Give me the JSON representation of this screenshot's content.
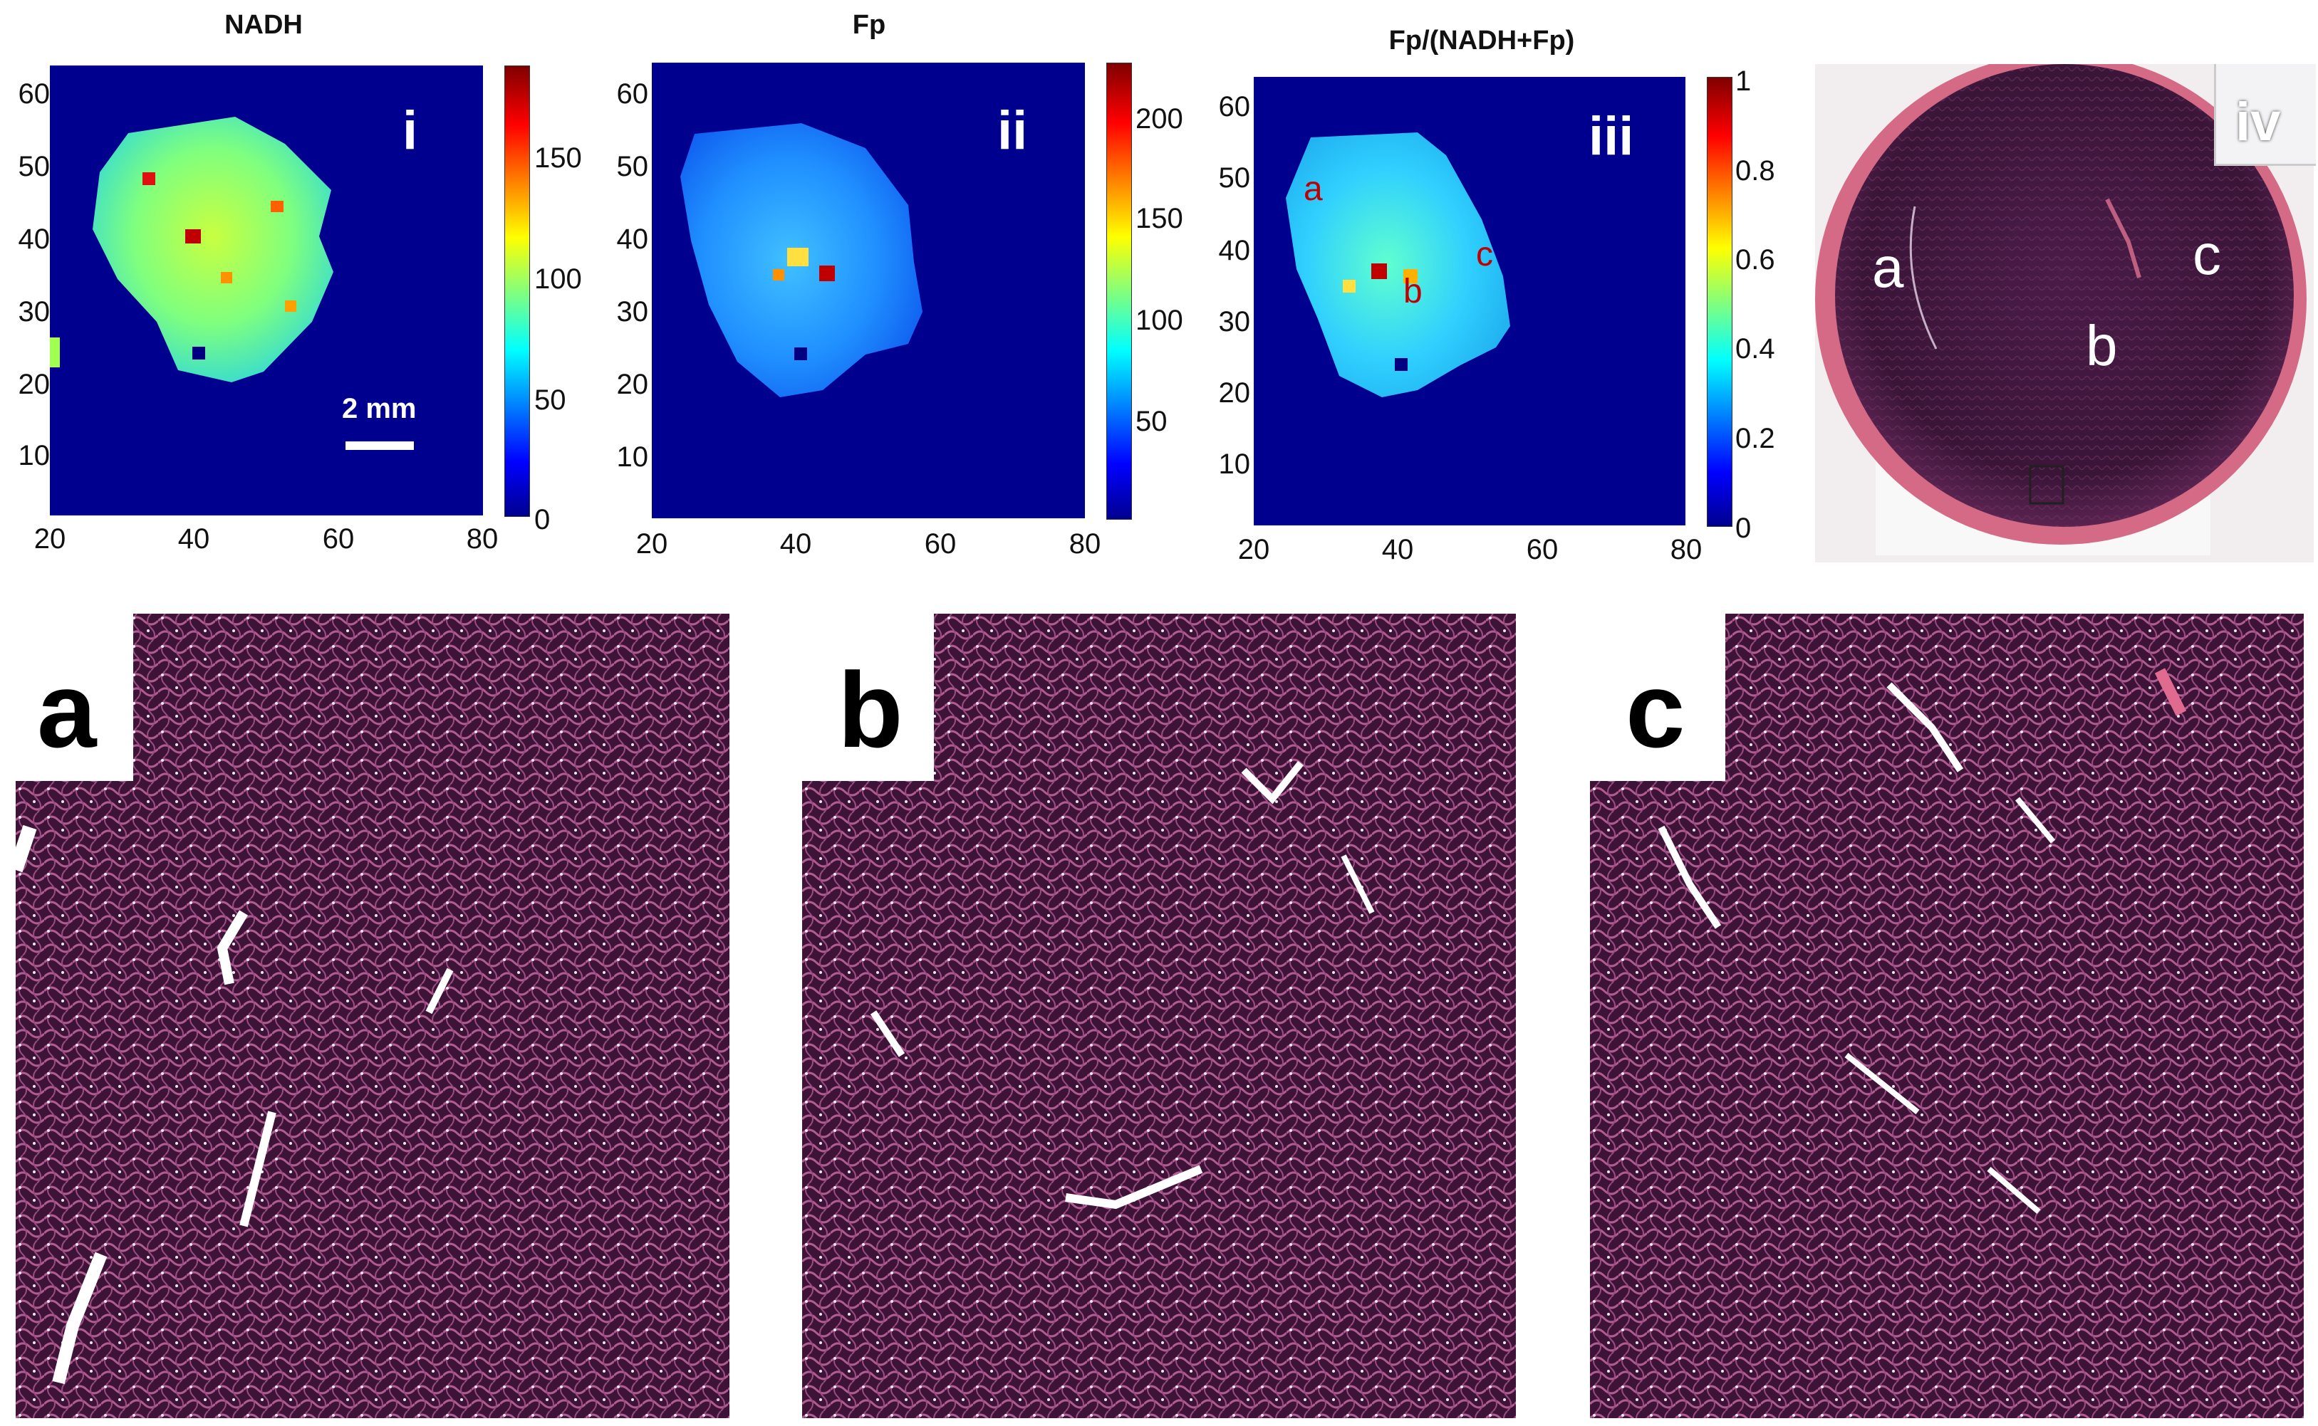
{
  "heatmaps": [
    {
      "title": "NADH",
      "panel_label": "i",
      "y_ticks": [
        "60",
        "50",
        "40",
        "30",
        "20",
        "10"
      ],
      "x_ticks": [
        "20",
        "40",
        "60",
        "80"
      ],
      "colorbar_ticks": [
        "150",
        "100",
        "50",
        "0"
      ],
      "scale_bar_text": "2 mm"
    },
    {
      "title": "Fp",
      "panel_label": "ii",
      "y_ticks": [
        "60",
        "50",
        "40",
        "30",
        "20",
        "10"
      ],
      "x_ticks": [
        "20",
        "40",
        "60",
        "80"
      ],
      "colorbar_ticks": [
        "200",
        "150",
        "100",
        "50"
      ]
    },
    {
      "title": "Fp/(NADH+Fp)",
      "panel_label": "iii",
      "y_ticks": [
        "60",
        "50",
        "40",
        "30",
        "20",
        "10"
      ],
      "x_ticks": [
        "20",
        "40",
        "60",
        "80"
      ],
      "colorbar_ticks": [
        "1",
        "0.8",
        "0.6",
        "0.4",
        "0.2",
        "0"
      ],
      "region_labels": [
        "a",
        "b",
        "c"
      ]
    }
  ],
  "histology_overview": {
    "panel_label": "iv",
    "region_labels": [
      "a",
      "b",
      "c"
    ]
  },
  "histology_closeups": [
    {
      "letter": "a"
    },
    {
      "letter": "b"
    },
    {
      "letter": "c"
    }
  ],
  "colors": {
    "heatmap_background": "#00008f",
    "region_label_color": "#c00000",
    "he_stain_dark": "#3d1438",
    "he_stain_pink": "#c0506e"
  }
}
